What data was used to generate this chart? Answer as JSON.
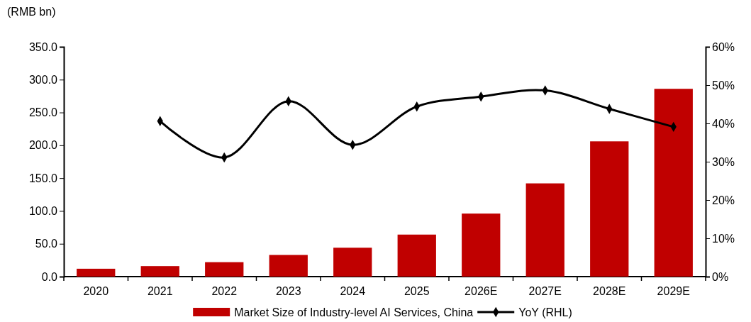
{
  "chart_data": {
    "type": "bar",
    "ylabel": "(RMB bn)",
    "categories": [
      "2020",
      "2021",
      "2022",
      "2023",
      "2024",
      "2025",
      "2026E",
      "2027E",
      "2028E",
      "2029E"
    ],
    "series": [
      {
        "name": "Market Size of Industry-level AI Services, China",
        "color": "#c00000",
        "values": [
          12,
          16,
          22,
          33,
          44,
          64,
          96,
          142,
          206,
          286
        ]
      },
      {
        "name": "YoY (RHL)",
        "type": "line",
        "axis": "y2",
        "color": "#000000",
        "marker": "diamond",
        "line_style": "solid",
        "values": [
          null,
          40.6,
          31.1,
          45.8,
          34.4,
          44.4,
          47.0,
          48.6,
          43.8,
          39.1
        ]
      }
    ],
    "ylim": [
      0,
      350
    ],
    "yticks": [
      {
        "value": 0,
        "label": "0.0"
      },
      {
        "value": 50,
        "label": "50.0"
      },
      {
        "value": 100,
        "label": "100.0"
      },
      {
        "value": 150,
        "label": "150.0"
      },
      {
        "value": 200,
        "label": "200.0"
      },
      {
        "value": 250,
        "label": "250.0"
      },
      {
        "value": 300,
        "label": "300.0"
      },
      {
        "value": 350,
        "label": "350.0"
      }
    ],
    "y2lim": [
      0,
      60
    ],
    "y2ticks": [
      {
        "value": 0,
        "label": "0%"
      },
      {
        "value": 10,
        "label": "10%"
      },
      {
        "value": 20,
        "label": "20%"
      },
      {
        "value": 30,
        "label": "30%"
      },
      {
        "value": 40,
        "label": "40%"
      },
      {
        "value": 50,
        "label": "50%"
      },
      {
        "value": 60,
        "label": "60%"
      }
    ],
    "grid": false,
    "legend": "bottom"
  }
}
